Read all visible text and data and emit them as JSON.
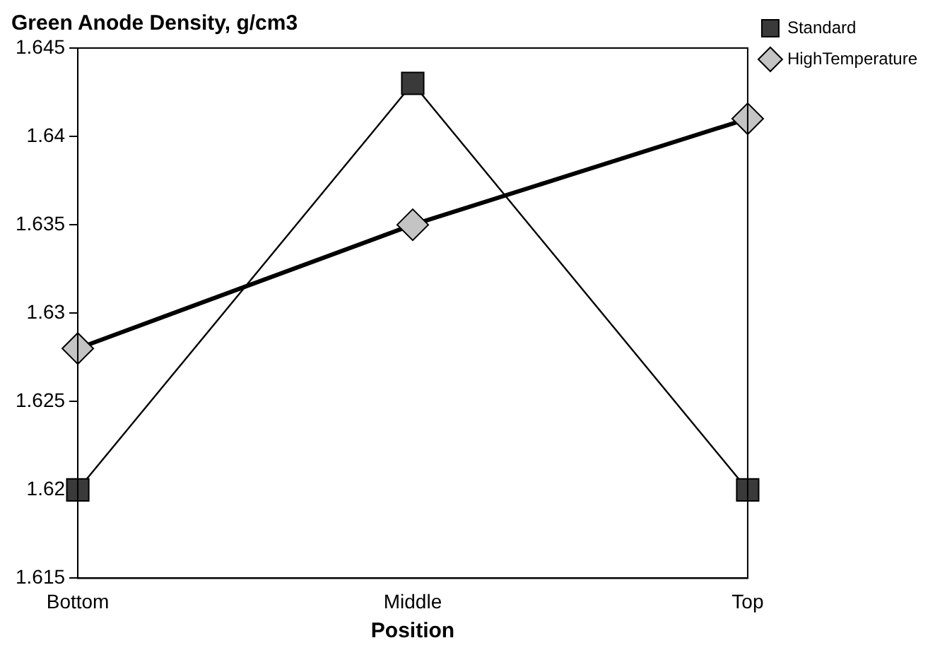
{
  "chart_data": {
    "type": "line",
    "title": "Green Anode Density, g/cm3",
    "xlabel": "Position",
    "categories": [
      "Bottom",
      "Middle",
      "Top"
    ],
    "series": [
      {
        "name": "Standard",
        "color": "#3a3a3a",
        "values": [
          1.62,
          1.643,
          1.62
        ],
        "marker": "square"
      },
      {
        "name": "HighTemperature",
        "color": "#c4c4c4",
        "values": [
          1.628,
          1.635,
          1.641
        ],
        "marker": "diamond"
      }
    ],
    "ylim": [
      1.615,
      1.645
    ],
    "yticks": [
      1.615,
      1.62,
      1.625,
      1.63,
      1.635,
      1.64,
      1.645
    ],
    "grid": false,
    "legend": "top right",
    "line_style": "solid"
  }
}
